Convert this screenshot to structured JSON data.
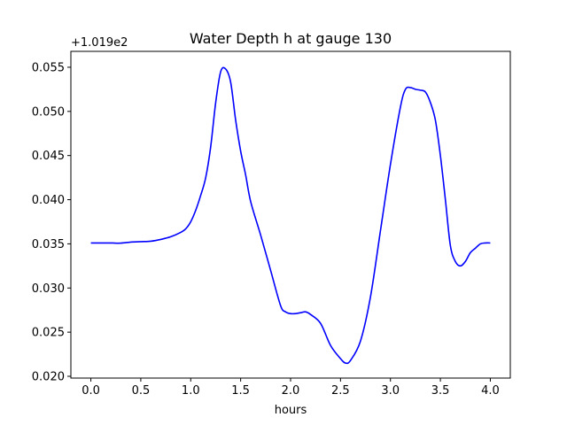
{
  "chart_data": {
    "type": "line",
    "title": "Water Depth h at gauge 130",
    "xlabel": "hours",
    "ylabel": "",
    "y_offset_text": "+1.019e2",
    "xlim": [
      -0.2,
      4.2
    ],
    "ylim": [
      0.0198,
      0.0568
    ],
    "x_ticks": [
      0.0,
      0.5,
      1.0,
      1.5,
      2.0,
      2.5,
      3.0,
      3.5,
      4.0
    ],
    "x_tick_labels": [
      "0.0",
      "0.5",
      "1.0",
      "1.5",
      "2.0",
      "2.5",
      "3.0",
      "3.5",
      "4.0"
    ],
    "y_ticks": [
      0.02,
      0.025,
      0.03,
      0.035,
      0.04,
      0.045,
      0.05,
      0.055
    ],
    "y_tick_labels": [
      "0.020",
      "0.025",
      "0.030",
      "0.035",
      "0.040",
      "0.045",
      "0.050",
      "0.055"
    ],
    "grid": false,
    "legend": "none",
    "series": [
      {
        "color": "#0000ff",
        "x": [
          0.0,
          0.1,
          0.2,
          0.3,
          0.4,
          0.5,
          0.6,
          0.7,
          0.8,
          0.9,
          0.95,
          1.0,
          1.05,
          1.1,
          1.15,
          1.2,
          1.25,
          1.3,
          1.35,
          1.4,
          1.45,
          1.5,
          1.55,
          1.6,
          1.7,
          1.8,
          1.9,
          1.95,
          2.0,
          2.05,
          2.1,
          2.15,
          2.2,
          2.3,
          2.4,
          2.5,
          2.55,
          2.6,
          2.7,
          2.8,
          2.9,
          3.0,
          3.1,
          3.15,
          3.2,
          3.25,
          3.3,
          3.35,
          3.4,
          3.45,
          3.5,
          3.55,
          3.6,
          3.65,
          3.7,
          3.75,
          3.8,
          3.85,
          3.9,
          3.95,
          4.0
        ],
        "y": [
          0.0351,
          0.0351,
          0.0351,
          0.03508,
          0.0352,
          0.03525,
          0.0353,
          0.0355,
          0.0358,
          0.0363,
          0.0367,
          0.0375,
          0.0388,
          0.0405,
          0.0425,
          0.046,
          0.051,
          0.0545,
          0.0548,
          0.0533,
          0.049,
          0.0455,
          0.0428,
          0.0398,
          0.036,
          0.032,
          0.028,
          0.0273,
          0.0271,
          0.0271,
          0.0272,
          0.0273,
          0.027,
          0.026,
          0.0235,
          0.022,
          0.0215,
          0.0218,
          0.024,
          0.029,
          0.0365,
          0.044,
          0.0505,
          0.0525,
          0.0527,
          0.0525,
          0.0524,
          0.0522,
          0.051,
          0.049,
          0.045,
          0.04,
          0.0348,
          0.033,
          0.0325,
          0.033,
          0.034,
          0.0345,
          0.035,
          0.0351,
          0.0351
        ]
      }
    ]
  }
}
